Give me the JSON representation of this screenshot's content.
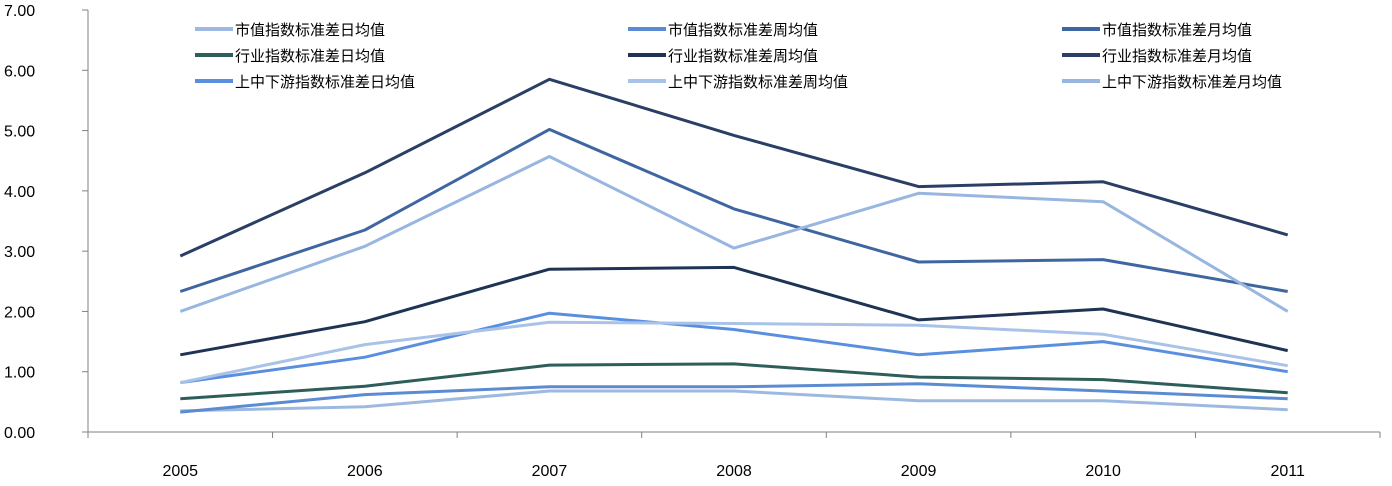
{
  "chart_data": {
    "type": "line",
    "title": "",
    "xlabel": "",
    "ylabel": "",
    "categories": [
      "2005",
      "2006",
      "2007",
      "2008",
      "2009",
      "2010",
      "2011"
    ],
    "ylim": [
      0,
      7
    ],
    "yticks": [
      "0.00",
      "1.00",
      "2.00",
      "3.00",
      "4.00",
      "5.00",
      "6.00",
      "7.00"
    ],
    "grid": false,
    "legend_position": "top",
    "series": [
      {
        "name": "市值指数标准差日均值",
        "color": "#9db9e0",
        "values": [
          0.35,
          0.42,
          0.68,
          0.68,
          0.52,
          0.52,
          0.37
        ]
      },
      {
        "name": "市值指数标准差周均值",
        "color": "#5b8bd3",
        "values": [
          0.33,
          0.62,
          0.75,
          0.75,
          0.8,
          0.68,
          0.55
        ]
      },
      {
        "name": "市值指数标准差月均值",
        "color": "#3f66a0",
        "values": [
          2.33,
          3.35,
          5.02,
          3.7,
          2.82,
          2.86,
          2.33
        ]
      },
      {
        "name": "行业指数标准差日均值",
        "color": "#2e5e5a",
        "values": [
          0.55,
          0.76,
          1.11,
          1.13,
          0.91,
          0.87,
          0.65
        ]
      },
      {
        "name": "行业指数标准差周均值",
        "color": "#1f3354",
        "values": [
          1.28,
          1.83,
          2.7,
          2.73,
          1.86,
          2.04,
          1.35
        ]
      },
      {
        "name": "行业指数标准差月均值",
        "color": "#2a3e66",
        "values": [
          2.92,
          4.3,
          5.85,
          4.92,
          4.07,
          4.15,
          3.27
        ]
      },
      {
        "name": "上中下游指数标准差日均值",
        "color": "#5a8fe0",
        "values": [
          0.82,
          1.24,
          1.97,
          1.7,
          1.28,
          1.5,
          1.0
        ]
      },
      {
        "name": "上中下游指数标准差周均值",
        "color": "#a9c3e8",
        "values": [
          0.82,
          1.45,
          1.82,
          1.8,
          1.77,
          1.62,
          1.1
        ]
      },
      {
        "name": "上中下游指数标准差月均值",
        "color": "#98b6e0",
        "values": [
          2.0,
          3.08,
          4.57,
          3.05,
          3.96,
          3.82,
          2.0
        ]
      }
    ]
  }
}
